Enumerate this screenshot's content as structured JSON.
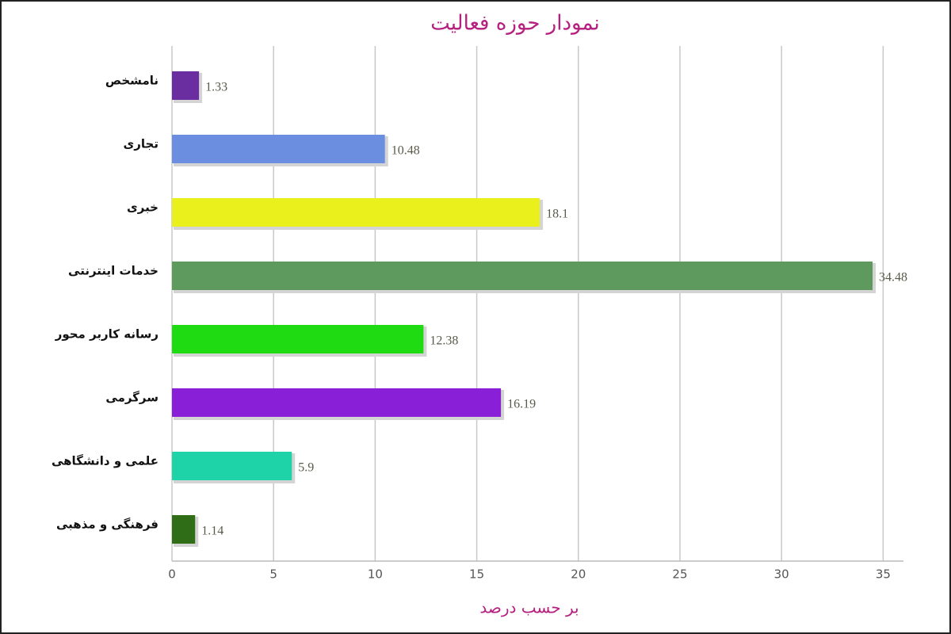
{
  "chart_data": {
    "type": "bar",
    "orientation": "horizontal",
    "title": "نمودار حوزه فعالیت",
    "x_label": "بر حسب درصد",
    "categories": [
      "نامشخص",
      "تجاری",
      "خبری",
      "خدمات اینترنتی",
      "رسانه کاربر محور",
      "سرگرمی",
      "علمی و دانشگاهی",
      "فرهنگی و مذهبی"
    ],
    "values": [
      1.33,
      10.48,
      18.1,
      34.48,
      12.38,
      16.19,
      5.9,
      1.14
    ],
    "colors": [
      "#6a2ea0",
      "#6b8ee0",
      "#eaf01c",
      "#5e9a5e",
      "#1fdc12",
      "#8a1fd8",
      "#1fd3a8",
      "#2f6e17"
    ],
    "xlim": [
      0,
      36
    ],
    "xticks": [
      0,
      5,
      10,
      15,
      20,
      25,
      30,
      35
    ],
    "grid": true
  }
}
